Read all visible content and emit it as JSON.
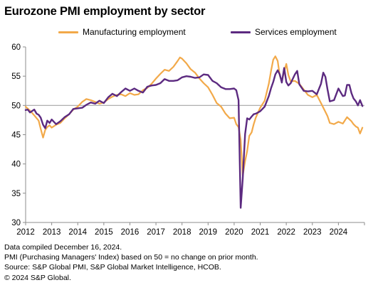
{
  "chart_data": {
    "type": "line",
    "title": "Eurozone PMI employment by sector",
    "xlabel": "",
    "ylabel": "",
    "xlim": [
      2012.0,
      2025.0
    ],
    "ylim": [
      30,
      60
    ],
    "x_ticks": [
      "2012",
      "2013",
      "2014",
      "2015",
      "2016",
      "2017",
      "2018",
      "2019",
      "2020",
      "2021",
      "2022",
      "2023",
      "2024"
    ],
    "y_ticks": [
      "30",
      "35",
      "40",
      "45",
      "50",
      "55",
      "60"
    ],
    "reference_line": 50,
    "grid": false,
    "legend_position": "top",
    "series": [
      {
        "name": "Manufacturing employment",
        "color": "#f2a949",
        "points": [
          [
            2012.0,
            49.8
          ],
          [
            2012.17,
            49.1
          ],
          [
            2012.33,
            48.3
          ],
          [
            2012.5,
            47.4
          ],
          [
            2012.58,
            46.0
          ],
          [
            2012.67,
            44.5
          ],
          [
            2012.75,
            45.8
          ],
          [
            2012.83,
            46.3
          ],
          [
            2012.92,
            46.6
          ],
          [
            2013.0,
            46.2
          ],
          [
            2013.17,
            46.7
          ],
          [
            2013.33,
            47.0
          ],
          [
            2013.5,
            47.8
          ],
          [
            2013.67,
            48.5
          ],
          [
            2013.83,
            49.3
          ],
          [
            2014.0,
            49.8
          ],
          [
            2014.17,
            50.6
          ],
          [
            2014.33,
            51.1
          ],
          [
            2014.5,
            50.9
          ],
          [
            2014.67,
            50.6
          ],
          [
            2014.83,
            50.3
          ],
          [
            2015.0,
            50.5
          ],
          [
            2015.17,
            51.1
          ],
          [
            2015.33,
            51.5
          ],
          [
            2015.5,
            51.8
          ],
          [
            2015.67,
            51.9
          ],
          [
            2015.83,
            51.6
          ],
          [
            2016.0,
            52.1
          ],
          [
            2016.17,
            51.8
          ],
          [
            2016.33,
            51.9
          ],
          [
            2016.5,
            52.6
          ],
          [
            2016.67,
            53.0
          ],
          [
            2016.83,
            53.7
          ],
          [
            2017.0,
            54.6
          ],
          [
            2017.17,
            55.4
          ],
          [
            2017.33,
            56.1
          ],
          [
            2017.5,
            55.9
          ],
          [
            2017.67,
            56.6
          ],
          [
            2017.83,
            57.6
          ],
          [
            2017.92,
            58.2
          ],
          [
            2018.0,
            58.0
          ],
          [
            2018.17,
            57.2
          ],
          [
            2018.33,
            56.2
          ],
          [
            2018.5,
            55.6
          ],
          [
            2018.67,
            54.6
          ],
          [
            2018.83,
            53.8
          ],
          [
            2019.0,
            53.1
          ],
          [
            2019.17,
            51.8
          ],
          [
            2019.33,
            50.4
          ],
          [
            2019.5,
            49.8
          ],
          [
            2019.67,
            48.6
          ],
          [
            2019.83,
            47.8
          ],
          [
            2020.0,
            47.9
          ],
          [
            2020.08,
            46.8
          ],
          [
            2020.17,
            46.3
          ],
          [
            2020.25,
            44.1
          ],
          [
            2020.33,
            38.0
          ],
          [
            2020.42,
            40.5
          ],
          [
            2020.5,
            42.2
          ],
          [
            2020.58,
            44.8
          ],
          [
            2020.67,
            45.4
          ],
          [
            2020.75,
            46.8
          ],
          [
            2020.83,
            47.9
          ],
          [
            2021.0,
            49.6
          ],
          [
            2021.17,
            50.8
          ],
          [
            2021.33,
            53.7
          ],
          [
            2021.42,
            56.0
          ],
          [
            2021.5,
            57.8
          ],
          [
            2021.58,
            58.4
          ],
          [
            2021.67,
            57.6
          ],
          [
            2021.75,
            55.1
          ],
          [
            2021.83,
            54.2
          ],
          [
            2021.92,
            55.8
          ],
          [
            2022.0,
            57.1
          ],
          [
            2022.08,
            55.2
          ],
          [
            2022.17,
            54.1
          ],
          [
            2022.33,
            54.2
          ],
          [
            2022.5,
            53.7
          ],
          [
            2022.67,
            52.7
          ],
          [
            2022.83,
            51.8
          ],
          [
            2023.0,
            51.4
          ],
          [
            2023.17,
            51.8
          ],
          [
            2023.33,
            50.4
          ],
          [
            2023.5,
            48.9
          ],
          [
            2023.58,
            48.2
          ],
          [
            2023.67,
            47.0
          ],
          [
            2023.83,
            46.8
          ],
          [
            2024.0,
            47.2
          ],
          [
            2024.17,
            46.9
          ],
          [
            2024.33,
            48.0
          ],
          [
            2024.5,
            47.3
          ],
          [
            2024.58,
            46.8
          ],
          [
            2024.67,
            46.4
          ],
          [
            2024.75,
            46.2
          ],
          [
            2024.83,
            45.2
          ],
          [
            2024.92,
            46.2
          ]
        ]
      },
      {
        "name": "Services employment",
        "color": "#5c2a80",
        "points": [
          [
            2012.0,
            49.2
          ],
          [
            2012.08,
            49.3
          ],
          [
            2012.17,
            48.8
          ],
          [
            2012.33,
            49.3
          ],
          [
            2012.42,
            48.6
          ],
          [
            2012.5,
            48.4
          ],
          [
            2012.58,
            47.9
          ],
          [
            2012.67,
            46.7
          ],
          [
            2012.75,
            46.1
          ],
          [
            2012.83,
            47.4
          ],
          [
            2012.92,
            47.0
          ],
          [
            2013.0,
            47.6
          ],
          [
            2013.17,
            46.8
          ],
          [
            2013.33,
            47.3
          ],
          [
            2013.5,
            48.0
          ],
          [
            2013.67,
            48.5
          ],
          [
            2013.83,
            49.4
          ],
          [
            2014.0,
            49.5
          ],
          [
            2014.17,
            49.6
          ],
          [
            2014.33,
            50.1
          ],
          [
            2014.5,
            50.5
          ],
          [
            2014.67,
            50.3
          ],
          [
            2014.83,
            50.8
          ],
          [
            2015.0,
            50.4
          ],
          [
            2015.17,
            51.4
          ],
          [
            2015.33,
            52.0
          ],
          [
            2015.5,
            51.6
          ],
          [
            2015.67,
            52.3
          ],
          [
            2015.83,
            52.9
          ],
          [
            2016.0,
            52.5
          ],
          [
            2016.17,
            52.9
          ],
          [
            2016.33,
            52.5
          ],
          [
            2016.5,
            52.2
          ],
          [
            2016.67,
            53.2
          ],
          [
            2016.83,
            53.4
          ],
          [
            2017.0,
            53.5
          ],
          [
            2017.17,
            53.8
          ],
          [
            2017.33,
            54.5
          ],
          [
            2017.5,
            54.2
          ],
          [
            2017.67,
            54.2
          ],
          [
            2017.83,
            54.3
          ],
          [
            2018.0,
            54.8
          ],
          [
            2018.17,
            55.0
          ],
          [
            2018.33,
            54.9
          ],
          [
            2018.5,
            54.7
          ],
          [
            2018.67,
            54.8
          ],
          [
            2018.83,
            55.3
          ],
          [
            2019.0,
            55.2
          ],
          [
            2019.17,
            54.2
          ],
          [
            2019.33,
            53.8
          ],
          [
            2019.5,
            53.1
          ],
          [
            2019.67,
            52.8
          ],
          [
            2019.83,
            52.8
          ],
          [
            2020.0,
            52.9
          ],
          [
            2020.08,
            52.6
          ],
          [
            2020.17,
            50.9
          ],
          [
            2020.25,
            32.5
          ],
          [
            2020.33,
            37.5
          ],
          [
            2020.42,
            45.1
          ],
          [
            2020.5,
            47.8
          ],
          [
            2020.58,
            47.6
          ],
          [
            2020.67,
            48.1
          ],
          [
            2020.75,
            48.5
          ],
          [
            2020.83,
            48.6
          ],
          [
            2021.0,
            49.0
          ],
          [
            2021.17,
            49.8
          ],
          [
            2021.33,
            51.6
          ],
          [
            2021.42,
            53.0
          ],
          [
            2021.5,
            54.0
          ],
          [
            2021.58,
            55.3
          ],
          [
            2021.67,
            56.0
          ],
          [
            2021.75,
            55.3
          ],
          [
            2021.83,
            53.9
          ],
          [
            2021.92,
            56.4
          ],
          [
            2022.0,
            54.0
          ],
          [
            2022.08,
            53.4
          ],
          [
            2022.17,
            53.8
          ],
          [
            2022.33,
            55.3
          ],
          [
            2022.42,
            55.9
          ],
          [
            2022.5,
            53.6
          ],
          [
            2022.67,
            52.5
          ],
          [
            2022.83,
            52.4
          ],
          [
            2023.0,
            52.5
          ],
          [
            2023.17,
            51.9
          ],
          [
            2023.33,
            53.7
          ],
          [
            2023.42,
            55.6
          ],
          [
            2023.5,
            54.9
          ],
          [
            2023.58,
            52.8
          ],
          [
            2023.67,
            50.7
          ],
          [
            2023.83,
            50.9
          ],
          [
            2024.0,
            52.9
          ],
          [
            2024.17,
            51.6
          ],
          [
            2024.25,
            51.7
          ],
          [
            2024.33,
            53.5
          ],
          [
            2024.42,
            53.5
          ],
          [
            2024.5,
            52.1
          ],
          [
            2024.58,
            51.2
          ],
          [
            2024.67,
            50.7
          ],
          [
            2024.75,
            50.0
          ],
          [
            2024.83,
            50.9
          ],
          [
            2024.92,
            49.9
          ]
        ]
      }
    ]
  },
  "footer": {
    "line1": "Data compiled December 16, 2024.",
    "line2": "PMI (Purchasing Managers' Index) based on 50 = no change on prior month.",
    "line3": "Source: S&P Global PMI, S&P Global Market Intelligence, HCOB.",
    "line4": "© 2024 S&P Global."
  },
  "colors": {
    "manufacturing": "#f2a949",
    "services": "#5c2a80",
    "axis": "#8c8c8c",
    "reference_line": "#a6a6a6"
  }
}
